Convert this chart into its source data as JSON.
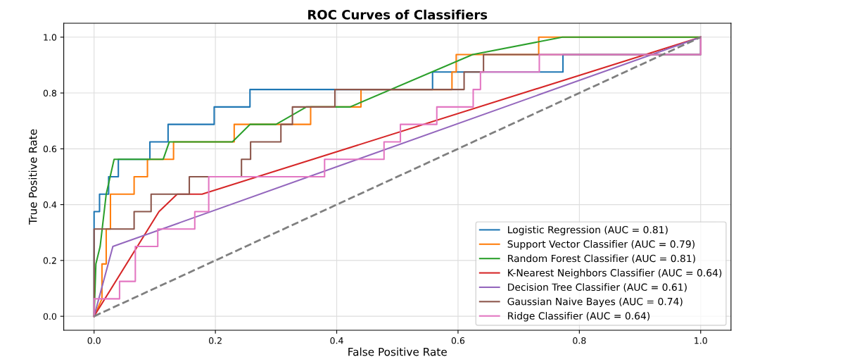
{
  "chart_data": {
    "type": "line",
    "title": "ROC Curves of Classifiers",
    "xlabel": "False Positive Rate",
    "ylabel": "True Positive Rate",
    "xlim": [
      -0.05,
      1.05
    ],
    "ylim": [
      -0.05,
      1.05
    ],
    "xticks": [
      {
        "value": 0,
        "label": "0.0"
      },
      0.2,
      0.4,
      0.6,
      0.8,
      {
        "value": 1,
        "label": "1.0"
      }
    ],
    "yticks": [
      {
        "value": 0,
        "label": "0.0"
      },
      0.2,
      0.4,
      0.6,
      0.8,
      {
        "value": 1,
        "label": "1.0"
      }
    ],
    "grid": true,
    "legend": "bottom right",
    "marker": "none",
    "series": [
      {
        "name": "Logistic Regression (AUC = 0.81)",
        "color": "#1f77b4",
        "x": [
          0,
          0,
          0.009,
          0.009,
          0.024,
          0.024,
          0.04,
          0.04,
          0.092,
          0.092,
          0.122,
          0.122,
          0.198,
          0.198,
          0.257,
          0.257,
          0.558,
          0.558,
          0.773,
          0.773,
          1.0,
          1.0
        ],
        "values": [
          0,
          0.375,
          0.375,
          0.4375,
          0.4375,
          0.5,
          0.5,
          0.5625,
          0.5625,
          0.625,
          0.625,
          0.6875,
          0.6875,
          0.75,
          0.75,
          0.8125,
          0.8125,
          0.875,
          0.875,
          0.9375,
          0.9375,
          1.0
        ]
      },
      {
        "name": "Support Vector Classifier (AUC = 0.79)",
        "color": "#ff7f0e",
        "x": [
          0,
          0.013,
          0.013,
          0.02,
          0.02,
          0.027,
          0.027,
          0.066,
          0.066,
          0.088,
          0.088,
          0.131,
          0.131,
          0.231,
          0.231,
          0.357,
          0.357,
          0.44,
          0.44,
          0.59,
          0.59,
          0.597,
          0.597,
          0.733,
          0.733,
          1.0
        ],
        "values": [
          0,
          0.0625,
          0.1875,
          0.1875,
          0.3125,
          0.3125,
          0.4375,
          0.4375,
          0.5,
          0.5,
          0.5625,
          0.5625,
          0.625,
          0.625,
          0.6875,
          0.6875,
          0.75,
          0.75,
          0.8125,
          0.8125,
          0.875,
          0.875,
          0.9375,
          0.9375,
          1.0,
          1.0
        ]
      },
      {
        "name": "Random Forest Classifier (AUC = 0.81)",
        "color": "#2ca02c",
        "x": [
          0,
          0.003,
          0.01,
          0.02,
          0.033,
          0.114,
          0.124,
          0.228,
          0.257,
          0.3,
          0.35,
          0.422,
          0.624,
          0.772,
          1.0
        ],
        "values": [
          0,
          0.1875,
          0.25,
          0.4375,
          0.5625,
          0.5625,
          0.625,
          0.625,
          0.6875,
          0.6875,
          0.75,
          0.75,
          0.9375,
          1.0,
          1.0
        ]
      },
      {
        "name": "K-Nearest Neighbors Classifier (AUC = 0.64)",
        "color": "#d62728",
        "x": [
          0,
          0.107,
          0.137,
          0.178,
          1.0
        ],
        "values": [
          0,
          0.375,
          0.4375,
          0.4375,
          1.0
        ]
      },
      {
        "name": "Decision Tree Classifier (AUC = 0.61)",
        "color": "#9467bd",
        "x": [
          0,
          0.031,
          1.0
        ],
        "values": [
          0,
          0.25,
          1.0
        ]
      },
      {
        "name": "Gaussian Naive Bayes (AUC = 0.74)",
        "color": "#8c564b",
        "x": [
          0,
          0,
          0.066,
          0.066,
          0.094,
          0.094,
          0.157,
          0.157,
          0.243,
          0.243,
          0.258,
          0.258,
          0.308,
          0.308,
          0.327,
          0.327,
          0.397,
          0.397,
          0.61,
          0.61,
          0.642,
          0.642,
          1.0,
          1.0
        ],
        "values": [
          0,
          0.3125,
          0.3125,
          0.375,
          0.375,
          0.4375,
          0.4375,
          0.5,
          0.5,
          0.5625,
          0.5625,
          0.625,
          0.625,
          0.6875,
          0.6875,
          0.75,
          0.75,
          0.8125,
          0.8125,
          0.875,
          0.875,
          0.9375,
          0.9375,
          1.0
        ]
      },
      {
        "name": "Ridge Classifier (AUC = 0.64)",
        "color": "#e377c2",
        "x": [
          0,
          0,
          0.042,
          0.042,
          0.068,
          0.068,
          0.105,
          0.105,
          0.166,
          0.166,
          0.189,
          0.189,
          0.38,
          0.38,
          0.478,
          0.478,
          0.505,
          0.505,
          0.565,
          0.565,
          0.625,
          0.625,
          0.637,
          0.637,
          0.734,
          0.734,
          1.0,
          1.0
        ],
        "values": [
          0,
          0.0625,
          0.0625,
          0.125,
          0.125,
          0.25,
          0.25,
          0.3125,
          0.3125,
          0.375,
          0.375,
          0.5,
          0.5,
          0.5625,
          0.5625,
          0.625,
          0.625,
          0.6875,
          0.6875,
          0.75,
          0.75,
          0.8125,
          0.8125,
          0.875,
          0.875,
          0.9375,
          0.9375,
          1.0
        ]
      },
      {
        "color": "#7f7f7f",
        "line_style": "dashed",
        "x": [
          0,
          1
        ],
        "values": [
          0,
          1
        ]
      }
    ]
  }
}
